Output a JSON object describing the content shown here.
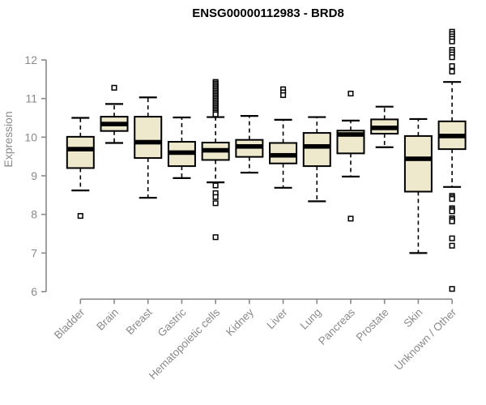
{
  "title": "ENSG00000112983 - BRD8",
  "colors": {
    "box_fill": "#EEE8CD",
    "box_stroke": "#000000",
    "median_color": "#000000",
    "axis_color": "#898989",
    "label_color": "#8A8A8A",
    "title_color": "#000000",
    "background": "#FFFFFF"
  },
  "chart_data": {
    "type": "box",
    "title": "ENSG00000112983 - BRD8",
    "ylabel": "Expression",
    "xlabel": "",
    "ylim": [
      6,
      12
    ],
    "yticks": [
      6,
      7,
      8,
      9,
      10,
      11,
      12
    ],
    "grid": false,
    "legend": "none",
    "categories": [
      "Bladder",
      "Brain",
      "Breast",
      "Gastric",
      "Hematopoietic cells",
      "Kidney",
      "Liver",
      "Lung",
      "Pancreas",
      "Prostate",
      "Skin",
      "Unknown / Other"
    ],
    "series": [
      {
        "name": "Bladder",
        "whisker_low": 8.62,
        "q1": 9.2,
        "median": 9.69,
        "q3": 10.01,
        "whisker_high": 10.5,
        "outliers": [
          7.96
        ]
      },
      {
        "name": "Brain",
        "whisker_low": 9.85,
        "q1": 10.16,
        "median": 10.34,
        "q3": 10.53,
        "whisker_high": 10.86,
        "outliers": [
          11.28
        ]
      },
      {
        "name": "Breast",
        "whisker_low": 8.43,
        "q1": 9.46,
        "median": 9.87,
        "q3": 10.53,
        "whisker_high": 11.03,
        "outliers": []
      },
      {
        "name": "Gastric",
        "whisker_low": 8.94,
        "q1": 9.25,
        "median": 9.6,
        "q3": 9.88,
        "whisker_high": 10.51,
        "outliers": []
      },
      {
        "name": "Hematopoietic cells",
        "whisker_low": 8.83,
        "q1": 9.41,
        "median": 9.66,
        "q3": 9.86,
        "whisker_high": 10.52,
        "outliers": [
          11.43,
          11.39,
          11.35,
          11.31,
          11.27,
          11.23,
          11.19,
          11.15,
          11.11,
          11.07,
          11.03,
          10.99,
          10.95,
          10.91,
          10.87,
          10.83,
          10.79,
          10.75,
          10.71,
          10.67,
          10.63,
          10.59,
          8.75,
          8.55,
          8.45,
          8.29,
          7.41
        ]
      },
      {
        "name": "Kidney",
        "whisker_low": 9.08,
        "q1": 9.49,
        "median": 9.76,
        "q3": 9.93,
        "whisker_high": 10.55,
        "outliers": []
      },
      {
        "name": "Liver",
        "whisker_low": 8.69,
        "q1": 9.32,
        "median": 9.53,
        "q3": 9.85,
        "whisker_high": 10.45,
        "outliers": [
          11.24,
          11.16,
          11.09
        ]
      },
      {
        "name": "Lung",
        "whisker_low": 8.34,
        "q1": 9.25,
        "median": 9.76,
        "q3": 10.11,
        "whisker_high": 10.52,
        "outliers": []
      },
      {
        "name": "Pancreas",
        "whisker_low": 8.98,
        "q1": 9.58,
        "median": 10.07,
        "q3": 10.17,
        "whisker_high": 10.43,
        "outliers": [
          11.13,
          7.89
        ]
      },
      {
        "name": "Prostate",
        "whisker_low": 9.74,
        "q1": 10.09,
        "median": 10.24,
        "q3": 10.46,
        "whisker_high": 10.79,
        "outliers": []
      },
      {
        "name": "Skin",
        "whisker_low": 7.0,
        "q1": 8.59,
        "median": 9.44,
        "q3": 10.03,
        "whisker_high": 10.47,
        "outliers": []
      },
      {
        "name": "Unknown / Other",
        "whisker_low": 8.71,
        "q1": 9.69,
        "median": 10.03,
        "q3": 10.41,
        "whisker_high": 11.43,
        "outliers": [
          12.73,
          12.67,
          12.61,
          12.55,
          12.48,
          12.26,
          12.2,
          12.14,
          12.07,
          11.84,
          11.7,
          8.48,
          8.44,
          8.4,
          8.16,
          8.12,
          8.08,
          7.9,
          7.86,
          7.82,
          7.38,
          7.19,
          6.07
        ]
      }
    ]
  }
}
